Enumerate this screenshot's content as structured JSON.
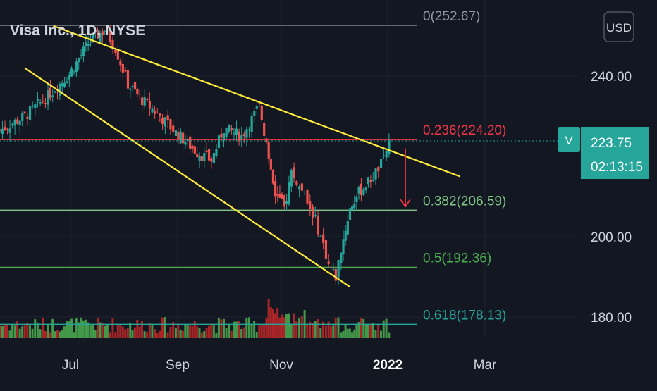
{
  "header": {
    "title": "Visa Inc., 1D, NYSE"
  },
  "currency_button": {
    "label": "USD"
  },
  "symbol_badge": {
    "label": "V"
  },
  "last_price": {
    "price": "223.75",
    "countdown": "02:13:15",
    "value": 223.75
  },
  "chart_data": {
    "type": "candlestick",
    "price_axis": {
      "ticks": [
        240,
        200,
        180
      ],
      "tick_labels": [
        "240.00",
        "200.00",
        "180.00"
      ]
    },
    "time_axis": {
      "labels": [
        "Jul",
        "Sep",
        "Nov",
        "2022",
        "Mar"
      ]
    },
    "fibonacci_levels": [
      {
        "label": "0(252.67)",
        "value": 252.67,
        "color": "#9598a1"
      },
      {
        "label": "0.236(224.20)",
        "value": 224.2,
        "color": "#f23645"
      },
      {
        "label": "0.382(206.59)",
        "value": 206.59,
        "color": "#81c784"
      },
      {
        "label": "0.5(192.36)",
        "value": 192.36,
        "color": "#4caf50"
      },
      {
        "label": "0.618(178.13)",
        "value": 178.13,
        "color": "#26a69a"
      }
    ],
    "trendlines": [
      {
        "name": "upper",
        "from": [
          "2021-07-01",
          252.5
        ],
        "to": [
          "2022-02-15",
          215
        ]
      },
      {
        "name": "lower",
        "from": [
          "2021-06-15",
          242
        ],
        "to": [
          "2021-12-15",
          187.5
        ]
      }
    ],
    "projection_arrow": {
      "from": 222,
      "to": 207.5
    },
    "price_path": [
      {
        "date": "2021-06-01",
        "close": 226.5
      },
      {
        "date": "2021-06-15",
        "close": 230
      },
      {
        "date": "2021-06-28",
        "close": 235
      },
      {
        "date": "2021-07-10",
        "close": 240.5
      },
      {
        "date": "2021-07-22",
        "close": 249
      },
      {
        "date": "2021-07-30",
        "close": 251.5
      },
      {
        "date": "2021-08-05",
        "close": 247
      },
      {
        "date": "2021-08-12",
        "close": 238
      },
      {
        "date": "2021-08-20",
        "close": 234
      },
      {
        "date": "2021-08-30",
        "close": 230
      },
      {
        "date": "2021-09-08",
        "close": 226
      },
      {
        "date": "2021-09-20",
        "close": 221
      },
      {
        "date": "2021-09-28",
        "close": 219
      },
      {
        "date": "2021-10-05",
        "close": 227
      },
      {
        "date": "2021-10-15",
        "close": 225
      },
      {
        "date": "2021-10-25",
        "close": 232.5
      },
      {
        "date": "2021-10-29",
        "close": 223
      },
      {
        "date": "2021-11-03",
        "close": 211
      },
      {
        "date": "2021-11-08",
        "close": 207
      },
      {
        "date": "2021-11-12",
        "close": 216
      },
      {
        "date": "2021-11-18",
        "close": 211
      },
      {
        "date": "2021-11-24",
        "close": 206
      },
      {
        "date": "2021-11-30",
        "close": 198
      },
      {
        "date": "2021-12-03",
        "close": 193
      },
      {
        "date": "2021-12-07",
        "close": 190
      },
      {
        "date": "2021-12-10",
        "close": 197
      },
      {
        "date": "2021-12-15",
        "close": 207
      },
      {
        "date": "2021-12-20",
        "close": 211
      },
      {
        "date": "2021-12-28",
        "close": 215
      },
      {
        "date": "2022-01-03",
        "close": 219
      },
      {
        "date": "2022-01-06",
        "close": 223.75
      }
    ]
  }
}
